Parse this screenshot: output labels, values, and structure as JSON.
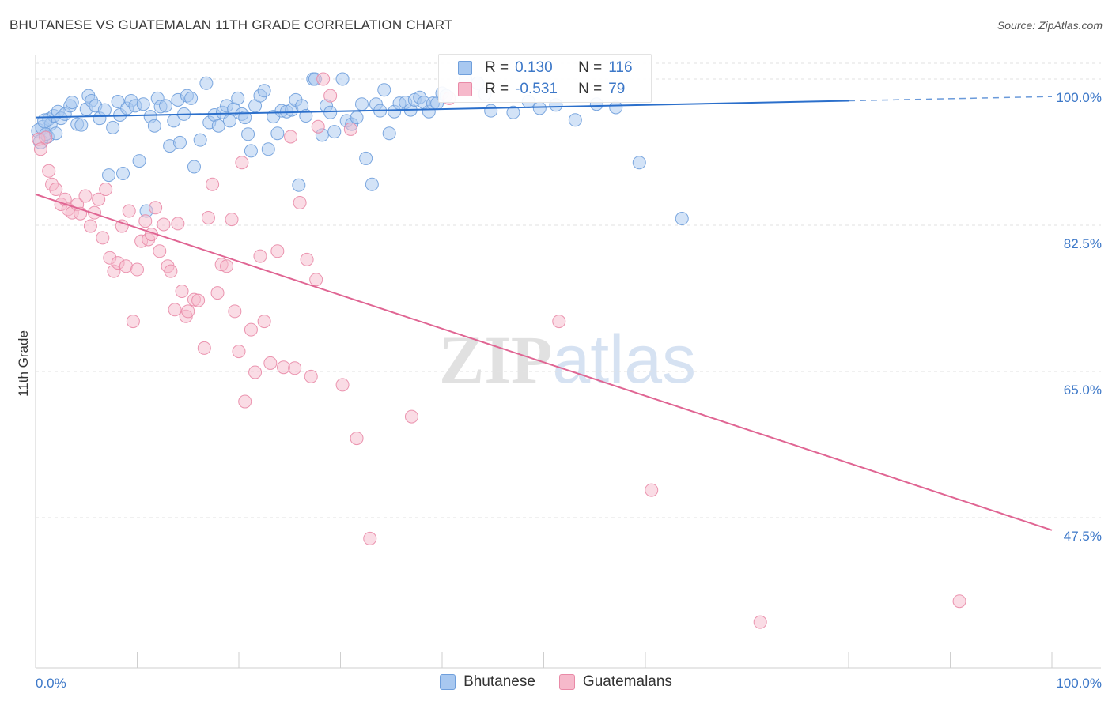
{
  "header": {
    "title": "BHUTANESE VS GUATEMALAN 11TH GRADE CORRELATION CHART",
    "source": "Source: ZipAtlas.com"
  },
  "watermark": {
    "zip": "ZIP",
    "atlas": "atlas"
  },
  "legend": {
    "rows": [
      {
        "r_label": "R =",
        "r_value": "0.130",
        "n_label": "N =",
        "n_value": "116",
        "color": "#a8c8f0"
      },
      {
        "r_label": "R =",
        "r_value": "-0.531",
        "n_label": "N =",
        "n_value": "79",
        "color": "#f6b9cb"
      }
    ]
  },
  "bottom_legend": {
    "bhutanese": "Bhutanese",
    "guatemalans": "Guatemalans"
  },
  "chart_data": {
    "type": "scatter",
    "title": "BHUTANESE VS GUATEMALAN 11TH GRADE CORRELATION CHART",
    "ylabel": "11th Grade",
    "xlabel": "",
    "xlim": [
      0,
      100
    ],
    "ylim": [
      30,
      101
    ],
    "x_tick_labels": [
      "0.0%",
      "100.0%"
    ],
    "y_ticks": [
      47.5,
      65.0,
      82.5,
      100.0
    ],
    "y_tick_labels": [
      "47.5%",
      "65.0%",
      "82.5%",
      "100.0%"
    ],
    "grid": true,
    "legend_position": "top-center",
    "series": [
      {
        "name": "Bhutanese",
        "color": "#a8c8f0",
        "stroke": "#6f9fdc",
        "trend": {
          "x": [
            0,
            80
          ],
          "y": [
            95.4,
            97.4
          ],
          "dashed_to": [
            100,
            97.9
          ],
          "color": "#2b6fcb"
        },
        "points": [
          [
            0.3,
            93.8
          ],
          [
            0.5,
            92.5
          ],
          [
            0.7,
            94.2
          ],
          [
            1.2,
            93.1
          ],
          [
            1.3,
            95.2
          ],
          [
            1.5,
            94.6
          ],
          [
            1.8,
            95.6
          ],
          [
            2.2,
            96.1
          ],
          [
            2.5,
            95.3
          ],
          [
            2.9,
            95.8
          ],
          [
            3.4,
            96.8
          ],
          [
            3.6,
            97.2
          ],
          [
            4.1,
            94.6
          ],
          [
            4.5,
            94.5
          ],
          [
            5.0,
            96.4
          ],
          [
            5.2,
            98.0
          ],
          [
            5.5,
            97.4
          ],
          [
            5.9,
            96.8
          ],
          [
            6.3,
            95.3
          ],
          [
            6.8,
            96.3
          ],
          [
            7.2,
            88.5
          ],
          [
            7.6,
            94.2
          ],
          [
            8.1,
            97.3
          ],
          [
            8.6,
            88.7
          ],
          [
            8.3,
            95.7
          ],
          [
            9.0,
            96.5
          ],
          [
            9.4,
            97.4
          ],
          [
            9.8,
            96.8
          ],
          [
            10.2,
            90.2
          ],
          [
            10.6,
            97.0
          ],
          [
            10.9,
            84.2
          ],
          [
            11.3,
            95.5
          ],
          [
            11.7,
            94.4
          ],
          [
            12.0,
            97.7
          ],
          [
            12.3,
            96.7
          ],
          [
            12.8,
            96.8
          ],
          [
            13.2,
            92.0
          ],
          [
            13.6,
            95.0
          ],
          [
            14.0,
            97.5
          ],
          [
            14.2,
            92.4
          ],
          [
            14.6,
            95.8
          ],
          [
            14.9,
            98.0
          ],
          [
            15.3,
            97.7
          ],
          [
            15.6,
            89.5
          ],
          [
            16.2,
            92.7
          ],
          [
            16.8,
            99.5
          ],
          [
            17.1,
            94.8
          ],
          [
            17.6,
            95.7
          ],
          [
            18.0,
            94.4
          ],
          [
            18.4,
            96.0
          ],
          [
            18.8,
            96.8
          ],
          [
            19.1,
            95.0
          ],
          [
            19.5,
            96.4
          ],
          [
            19.9,
            97.7
          ],
          [
            20.3,
            95.8
          ],
          [
            20.6,
            95.4
          ],
          [
            20.9,
            93.4
          ],
          [
            21.2,
            91.4
          ],
          [
            21.6,
            96.8
          ],
          [
            22.1,
            98.0
          ],
          [
            22.5,
            98.6
          ],
          [
            22.9,
            91.6
          ],
          [
            23.4,
            95.5
          ],
          [
            23.8,
            93.5
          ],
          [
            24.2,
            96.2
          ],
          [
            24.7,
            96.1
          ],
          [
            25.2,
            96.3
          ],
          [
            25.6,
            97.5
          ],
          [
            25.9,
            87.3
          ],
          [
            26.2,
            96.8
          ],
          [
            26.6,
            95.6
          ],
          [
            27.3,
            100.0
          ],
          [
            27.5,
            100.0
          ],
          [
            28.2,
            93.3
          ],
          [
            28.6,
            96.8
          ],
          [
            29.0,
            96.0
          ],
          [
            29.4,
            93.7
          ],
          [
            30.2,
            100.0
          ],
          [
            30.6,
            95.0
          ],
          [
            31.1,
            94.6
          ],
          [
            31.6,
            95.4
          ],
          [
            32.1,
            97.0
          ],
          [
            32.5,
            90.5
          ],
          [
            33.1,
            87.4
          ],
          [
            33.5,
            97.0
          ],
          [
            33.9,
            96.2
          ],
          [
            34.3,
            98.7
          ],
          [
            34.8,
            93.5
          ],
          [
            35.3,
            96.1
          ],
          [
            35.8,
            97.1
          ],
          [
            36.4,
            97.2
          ],
          [
            36.9,
            96.3
          ],
          [
            37.3,
            97.5
          ],
          [
            37.8,
            97.8
          ],
          [
            38.2,
            97.2
          ],
          [
            38.7,
            96.1
          ],
          [
            39.1,
            97.1
          ],
          [
            39.5,
            97.1
          ],
          [
            40.0,
            98.3
          ],
          [
            40.4,
            98.0
          ],
          [
            42.3,
            100.0
          ],
          [
            43.5,
            99.5
          ],
          [
            44.2,
            98.2
          ],
          [
            53.1,
            95.1
          ],
          [
            59.4,
            90.0
          ],
          [
            63.6,
            83.3
          ],
          [
            55.2,
            97.0
          ],
          [
            47.0,
            96.0
          ],
          [
            48.5,
            97.3
          ],
          [
            57.1,
            96.6
          ],
          [
            44.8,
            96.2
          ],
          [
            49.6,
            96.5
          ],
          [
            51.2,
            96.9
          ],
          [
            0.9,
            95.0
          ],
          [
            1.0,
            93.4
          ],
          [
            2.0,
            93.5
          ]
        ]
      },
      {
        "name": "Guatemalans",
        "color": "#f6b9cb",
        "stroke": "#e98aa7",
        "trend": {
          "x": [
            0,
            100
          ],
          "y": [
            86.2,
            46.0
          ],
          "color": "#e06593"
        },
        "points": [
          [
            0.3,
            92.8
          ],
          [
            0.5,
            91.6
          ],
          [
            1.0,
            93.0
          ],
          [
            1.3,
            89.0
          ],
          [
            1.6,
            87.4
          ],
          [
            2.0,
            86.8
          ],
          [
            2.5,
            85.0
          ],
          [
            2.9,
            85.6
          ],
          [
            3.2,
            84.4
          ],
          [
            3.6,
            84.0
          ],
          [
            4.1,
            85.0
          ],
          [
            4.4,
            83.9
          ],
          [
            4.9,
            86.0
          ],
          [
            5.4,
            82.4
          ],
          [
            5.8,
            84.0
          ],
          [
            6.2,
            85.6
          ],
          [
            6.6,
            81.0
          ],
          [
            6.9,
            86.8
          ],
          [
            7.3,
            78.6
          ],
          [
            7.7,
            77.0
          ],
          [
            8.1,
            78.0
          ],
          [
            8.5,
            82.4
          ],
          [
            8.9,
            77.6
          ],
          [
            9.2,
            84.2
          ],
          [
            9.6,
            71.0
          ],
          [
            10.0,
            77.2
          ],
          [
            10.4,
            80.6
          ],
          [
            10.8,
            83.0
          ],
          [
            11.1,
            80.8
          ],
          [
            11.4,
            81.4
          ],
          [
            11.8,
            84.6
          ],
          [
            12.2,
            79.4
          ],
          [
            12.6,
            82.6
          ],
          [
            13.0,
            77.6
          ],
          [
            13.3,
            77.0
          ],
          [
            13.7,
            72.4
          ],
          [
            14.0,
            82.7
          ],
          [
            14.4,
            74.6
          ],
          [
            14.8,
            71.6
          ],
          [
            15.0,
            72.2
          ],
          [
            15.6,
            73.6
          ],
          [
            16.0,
            73.5
          ],
          [
            16.6,
            67.8
          ],
          [
            17.0,
            83.4
          ],
          [
            17.4,
            87.4
          ],
          [
            17.9,
            74.4
          ],
          [
            18.3,
            77.8
          ],
          [
            18.8,
            77.6
          ],
          [
            19.3,
            83.2
          ],
          [
            19.6,
            72.2
          ],
          [
            20.0,
            67.4
          ],
          [
            20.3,
            90.0
          ],
          [
            20.6,
            61.4
          ],
          [
            21.2,
            70.0
          ],
          [
            21.6,
            64.9
          ],
          [
            22.1,
            78.8
          ],
          [
            22.5,
            71.0
          ],
          [
            23.1,
            66.0
          ],
          [
            23.8,
            79.4
          ],
          [
            24.4,
            65.5
          ],
          [
            25.1,
            93.1
          ],
          [
            25.5,
            65.4
          ],
          [
            26.0,
            85.2
          ],
          [
            26.7,
            78.4
          ],
          [
            27.1,
            64.4
          ],
          [
            27.6,
            76.0
          ],
          [
            27.8,
            94.3
          ],
          [
            28.3,
            100.0
          ],
          [
            29.0,
            98.0
          ],
          [
            30.2,
            63.4
          ],
          [
            31.0,
            94.0
          ],
          [
            31.6,
            57.0
          ],
          [
            32.9,
            45.0
          ],
          [
            37.0,
            59.6
          ],
          [
            40.7,
            97.7
          ],
          [
            51.5,
            71.0
          ],
          [
            60.6,
            50.8
          ],
          [
            71.3,
            35.0
          ],
          [
            90.9,
            37.5
          ]
        ]
      }
    ]
  }
}
